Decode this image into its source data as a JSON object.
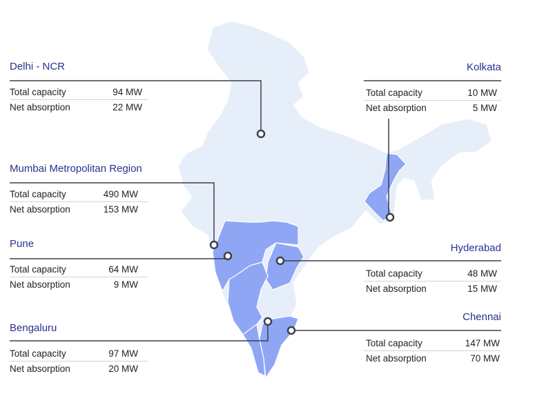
{
  "colors": {
    "land": "#e6eff9",
    "highlight": "#8fa6f5",
    "connector": "#3a3f4a",
    "city_title": "#2b2f8f"
  },
  "metric_labels": {
    "total": "Total capacity",
    "absorption": "Net absorption"
  },
  "cities": [
    {
      "id": "delhi",
      "name": "Delhi - NCR",
      "total": "94 MW",
      "absorption": "22 MW"
    },
    {
      "id": "mumbai",
      "name": "Mumbai Metropolitan Region",
      "total": "490 MW",
      "absorption": "153 MW"
    },
    {
      "id": "pune",
      "name": "Pune",
      "total": "64 MW",
      "absorption": "9 MW"
    },
    {
      "id": "bengaluru",
      "name": "Bengaluru",
      "total": "97 MW",
      "absorption": "20 MW"
    },
    {
      "id": "kolkata",
      "name": "Kolkata",
      "total": "10 MW",
      "absorption": "5 MW"
    },
    {
      "id": "hyderabad",
      "name": "Hyderabad",
      "total": "48 MW",
      "absorption": "15 MW"
    },
    {
      "id": "chennai",
      "name": "Chennai",
      "total": "147 MW",
      "absorption": "70 MW"
    }
  ]
}
